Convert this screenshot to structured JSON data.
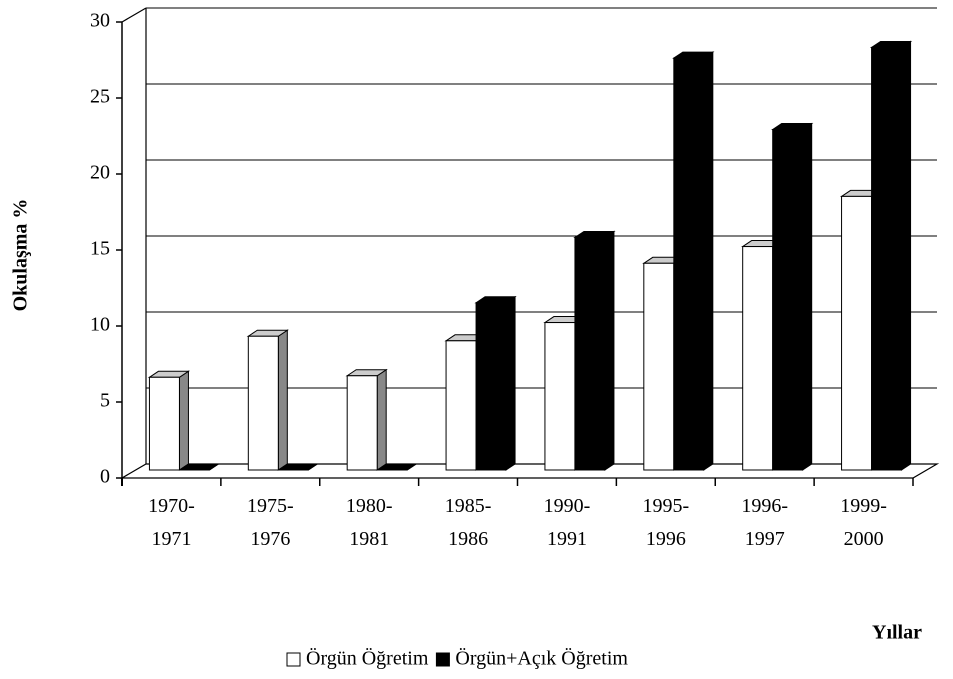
{
  "chart_data": {
    "type": "bar3d",
    "categories": [
      "1970-\n1971",
      "1975-\n1976",
      "1980-\n1981",
      "1985-\n1986",
      "1990-\n1991",
      "1995-\n1996",
      "1996-\n1997",
      "1999-\n2000"
    ],
    "series": [
      {
        "name": "Örgün Öğretim",
        "color": "#ffffff",
        "values": [
          6.1,
          8.8,
          6.2,
          8.5,
          9.7,
          13.6,
          14.7,
          18.0
        ]
      },
      {
        "name": "Örgün+Açık Öğretim",
        "color": "#000000",
        "values": [
          0,
          0,
          0,
          11.0,
          15.3,
          27.1,
          22.4,
          27.8
        ]
      }
    ],
    "ylabel": "Okulaşma %",
    "xlabel": "Yıllar",
    "ylim": [
      0,
      30
    ],
    "yticks": [
      0,
      5,
      10,
      15,
      20,
      25,
      30
    ],
    "grid": true,
    "legend": "bottom"
  }
}
